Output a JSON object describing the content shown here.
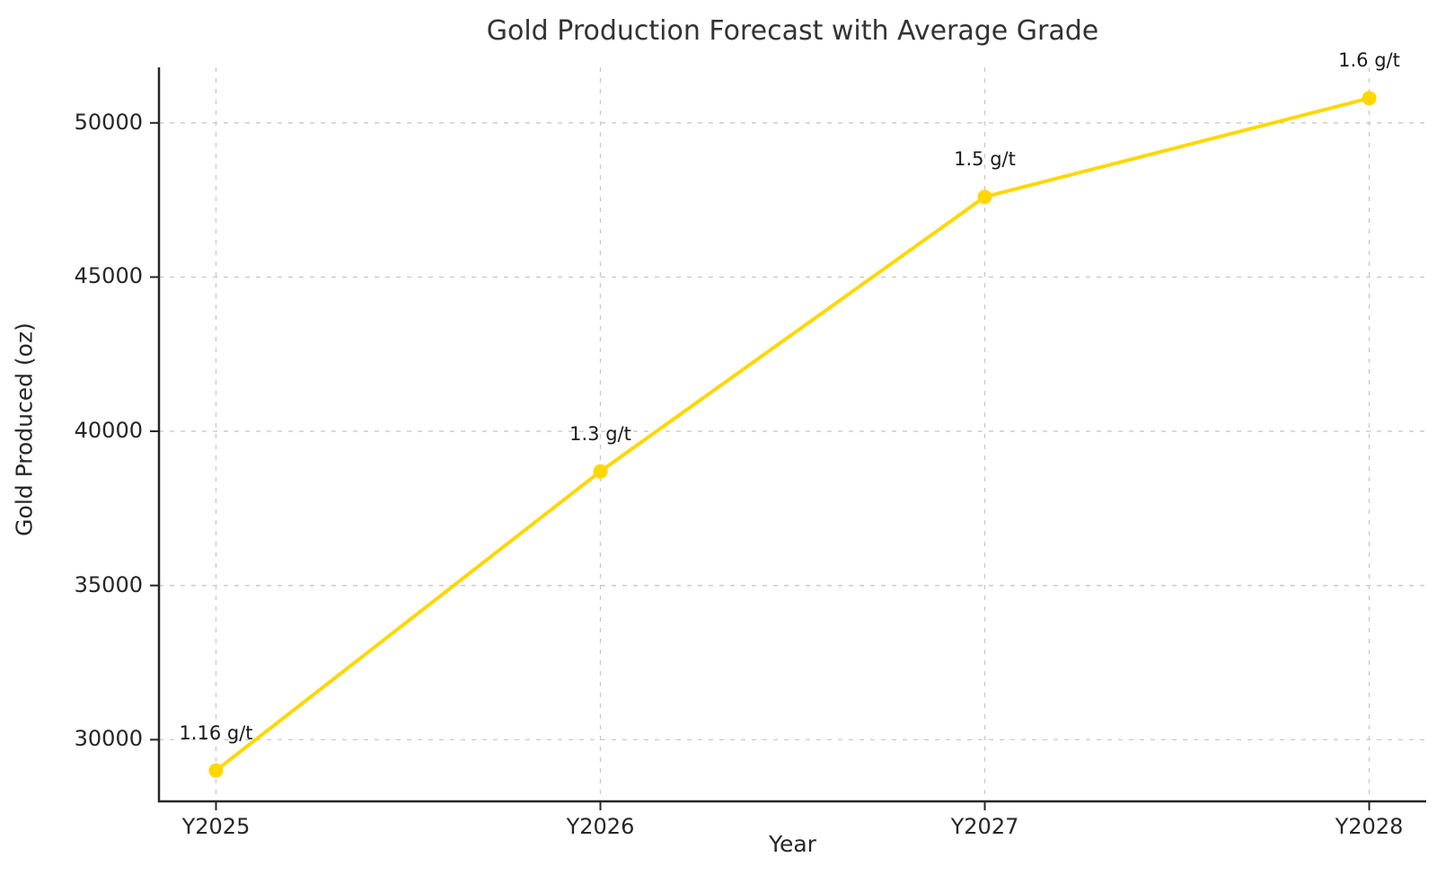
{
  "chart_data": {
    "type": "line",
    "title": "Gold Production Forecast with Average Grade",
    "xlabel": "Year",
    "ylabel": "Gold Produced (oz)",
    "categories": [
      "Y2025",
      "Y2026",
      "Y2027",
      "Y2028"
    ],
    "series": [
      {
        "name": "Gold Produced (oz)",
        "values": [
          29000,
          38700,
          47600,
          50800
        ]
      }
    ],
    "point_labels": [
      "1.16 g/t",
      "1.3 g/t",
      "1.5 g/t",
      "1.6 g/t"
    ],
    "yticks": [
      30000,
      35000,
      40000,
      45000,
      50000
    ],
    "ylim": [
      28000,
      51800
    ],
    "grid": "dashed",
    "legend_position": "none",
    "colors": {
      "line": "#FFD700",
      "marker": "#FFD700",
      "grid": "#c9c9c9",
      "spine": "#262626",
      "text": "#262626",
      "title": "#333333"
    }
  }
}
